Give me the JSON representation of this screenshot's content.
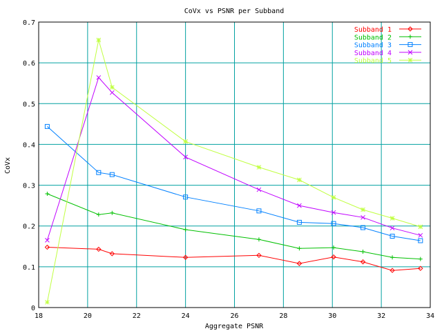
{
  "chart_data": {
    "type": "line",
    "title": "CoVx vs PSNR per Subband",
    "xlabel": "Aggregate PSNR",
    "ylabel": "CoVx",
    "xlim": [
      18,
      34
    ],
    "ylim": [
      0,
      0.7
    ],
    "xticks": [
      "18",
      "20",
      "22",
      "24",
      "26",
      "28",
      "30",
      "32",
      "34"
    ],
    "yticks": [
      "0",
      "0.1",
      "0.2",
      "0.3",
      "0.4",
      "0.5",
      "0.6",
      "0.7"
    ],
    "grid": true,
    "legend_position": "top-right",
    "series": [
      {
        "name": "Subband 1",
        "color": "#ff0000",
        "marker": "diamond",
        "x": [
          18.35,
          20.45,
          21.0,
          24.0,
          27.0,
          28.65,
          30.05,
          31.25,
          32.45,
          33.6
        ],
        "y": [
          0.148,
          0.143,
          0.132,
          0.123,
          0.128,
          0.108,
          0.124,
          0.112,
          0.091,
          0.096
        ]
      },
      {
        "name": "Subband 2",
        "color": "#00c000",
        "marker": "plus",
        "x": [
          18.35,
          20.45,
          21.0,
          24.0,
          27.0,
          28.65,
          30.05,
          31.25,
          32.45,
          33.6
        ],
        "y": [
          0.279,
          0.228,
          0.232,
          0.191,
          0.167,
          0.145,
          0.147,
          0.137,
          0.123,
          0.119
        ]
      },
      {
        "name": "Subband 3",
        "color": "#0080ff",
        "marker": "square",
        "x": [
          18.35,
          20.45,
          21.0,
          24.0,
          27.0,
          28.65,
          30.05,
          31.25,
          32.45,
          33.6
        ],
        "y": [
          0.444,
          0.331,
          0.326,
          0.271,
          0.237,
          0.209,
          0.206,
          0.196,
          0.175,
          0.164
        ]
      },
      {
        "name": "Subband 4",
        "color": "#c000ff",
        "marker": "cross",
        "x": [
          18.35,
          20.45,
          21.0,
          24.0,
          27.0,
          28.65,
          30.05,
          31.25,
          32.45,
          33.6
        ],
        "y": [
          0.165,
          0.564,
          0.527,
          0.369,
          0.289,
          0.25,
          0.233,
          0.221,
          0.195,
          0.177
        ]
      },
      {
        "name": "Subband 5",
        "color": "#c0ff40",
        "marker": "star",
        "x": [
          18.35,
          20.45,
          21.0,
          24.0,
          27.0,
          28.65,
          30.05,
          31.25,
          32.45,
          33.6
        ],
        "y": [
          0.013,
          0.656,
          0.54,
          0.407,
          0.344,
          0.313,
          0.27,
          0.24,
          0.219,
          0.198
        ]
      }
    ]
  }
}
